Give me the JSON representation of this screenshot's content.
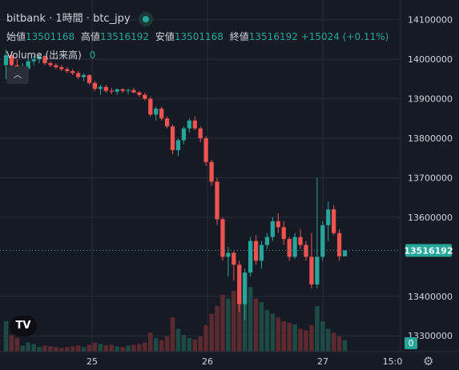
{
  "header": {
    "exchange": "bitbank",
    "interval": "1時間",
    "symbol": "btc_jpy",
    "separator": "·"
  },
  "ohlc": {
    "open_label": "始値",
    "open": "13501168",
    "high_label": "高値",
    "high": "13516192",
    "low_label": "安値",
    "low": "13501168",
    "close_label": "終値",
    "close": "13516192",
    "change": "+15024",
    "change_pct": "(+0.11%)"
  },
  "volume": {
    "label": "Volume (出来高)",
    "value": "0"
  },
  "logo_text": "TV",
  "colors": {
    "up": "#26a69a",
    "down": "#ef5350",
    "background": "#161a25",
    "grid": "#2a2e39"
  },
  "chart_data": {
    "type": "candlestick",
    "y_ticks": [
      14100000,
      14000000,
      13900000,
      13800000,
      13700000,
      13600000,
      13400000,
      13300000
    ],
    "ylim": [
      13260000,
      14150000
    ],
    "x_ticks": [
      "25",
      "26",
      "27",
      "15:0"
    ],
    "last_price": "13516192",
    "volume_axis_label": "0",
    "candles": [
      [
        13985000,
        14025000,
        13950000,
        14010000
      ],
      [
        14010000,
        14020000,
        13960000,
        13985000
      ],
      [
        13985000,
        14000000,
        13950000,
        13960000
      ],
      [
        13960000,
        13990000,
        13945000,
        13975000
      ],
      [
        13975000,
        14005000,
        13965000,
        13995000
      ],
      [
        13995000,
        14010000,
        13985000,
        14000000
      ],
      [
        14000000,
        14015000,
        13990000,
        14008000
      ],
      [
        14008000,
        14010000,
        13985000,
        13990000
      ],
      [
        13990000,
        13995000,
        13980000,
        13985000
      ],
      [
        13985000,
        13990000,
        13975000,
        13980000
      ],
      [
        13980000,
        13985000,
        13970000,
        13975000
      ],
      [
        13975000,
        13980000,
        13965000,
        13970000
      ],
      [
        13970000,
        13975000,
        13960000,
        13965000
      ],
      [
        13965000,
        13970000,
        13950000,
        13955000
      ],
      [
        13955000,
        13965000,
        13945000,
        13960000
      ],
      [
        13960000,
        13962000,
        13935000,
        13940000
      ],
      [
        13940000,
        13945000,
        13920000,
        13925000
      ],
      [
        13925000,
        13935000,
        13910000,
        13930000
      ],
      [
        13930000,
        13935000,
        13915000,
        13920000
      ],
      [
        13920000,
        13928000,
        13912000,
        13918000
      ],
      [
        13918000,
        13926000,
        13910000,
        13924000
      ],
      [
        13924000,
        13927000,
        13915000,
        13920000
      ],
      [
        13920000,
        13925000,
        13912000,
        13922000
      ],
      [
        13922000,
        13928000,
        13914000,
        13916000
      ],
      [
        13916000,
        13920000,
        13905000,
        13910000
      ],
      [
        13910000,
        13915000,
        13895000,
        13900000
      ],
      [
        13900000,
        13905000,
        13855000,
        13860000
      ],
      [
        13860000,
        13880000,
        13845000,
        13875000
      ],
      [
        13875000,
        13880000,
        13845000,
        13850000
      ],
      [
        13850000,
        13855000,
        13825000,
        13830000
      ],
      [
        13830000,
        13835000,
        13760000,
        13770000
      ],
      [
        13770000,
        13800000,
        13755000,
        13795000
      ],
      [
        13795000,
        13830000,
        13785000,
        13825000
      ],
      [
        13825000,
        13850000,
        13815000,
        13845000
      ],
      [
        13845000,
        13855000,
        13820000,
        13825000
      ],
      [
        13825000,
        13830000,
        13790000,
        13800000
      ],
      [
        13800000,
        13805000,
        13730000,
        13740000
      ],
      [
        13740000,
        13745000,
        13680000,
        13690000
      ],
      [
        13690000,
        13700000,
        13580000,
        13595000
      ],
      [
        13595000,
        13600000,
        13490000,
        13500000
      ],
      [
        13500000,
        13525000,
        13450000,
        13510000
      ],
      [
        13510000,
        13515000,
        13440000,
        13480000
      ],
      [
        13480000,
        13490000,
        13360000,
        13380000
      ],
      [
        13380000,
        13470000,
        13340000,
        13460000
      ],
      [
        13460000,
        13550000,
        13450000,
        13540000
      ],
      [
        13540000,
        13555000,
        13480000,
        13490000
      ],
      [
        13490000,
        13540000,
        13470000,
        13530000
      ],
      [
        13530000,
        13560000,
        13520000,
        13550000
      ],
      [
        13550000,
        13600000,
        13540000,
        13590000
      ],
      [
        13590000,
        13610000,
        13560000,
        13575000
      ],
      [
        13575000,
        13590000,
        13530000,
        13545000
      ],
      [
        13545000,
        13550000,
        13490000,
        13500000
      ],
      [
        13500000,
        13560000,
        13495000,
        13550000
      ],
      [
        13550000,
        13570000,
        13520000,
        13530000
      ],
      [
        13530000,
        13540000,
        13490000,
        13500000
      ],
      [
        13500000,
        13560000,
        13420000,
        13430000
      ],
      [
        13430000,
        13700000,
        13420000,
        13500000
      ],
      [
        13500000,
        13590000,
        13490000,
        13580000
      ],
      [
        13580000,
        13640000,
        13540000,
        13620000
      ],
      [
        13620000,
        13630000,
        13555000,
        13560000
      ],
      [
        13560000,
        13570000,
        13490000,
        13501168
      ],
      [
        13501168,
        13516192,
        13501168,
        13516192
      ]
    ],
    "volumes": [
      40,
      22,
      18,
      8,
      12,
      10,
      6,
      8,
      7,
      6,
      5,
      6,
      7,
      8,
      6,
      9,
      12,
      10,
      8,
      9,
      7,
      6,
      8,
      9,
      10,
      12,
      25,
      18,
      15,
      20,
      45,
      30,
      22,
      18,
      16,
      20,
      35,
      50,
      60,
      75,
      70,
      80,
      100,
      90,
      85,
      70,
      65,
      55,
      50,
      45,
      40,
      38,
      36,
      30,
      28,
      35,
      60,
      40,
      30,
      25,
      20,
      15
    ]
  }
}
